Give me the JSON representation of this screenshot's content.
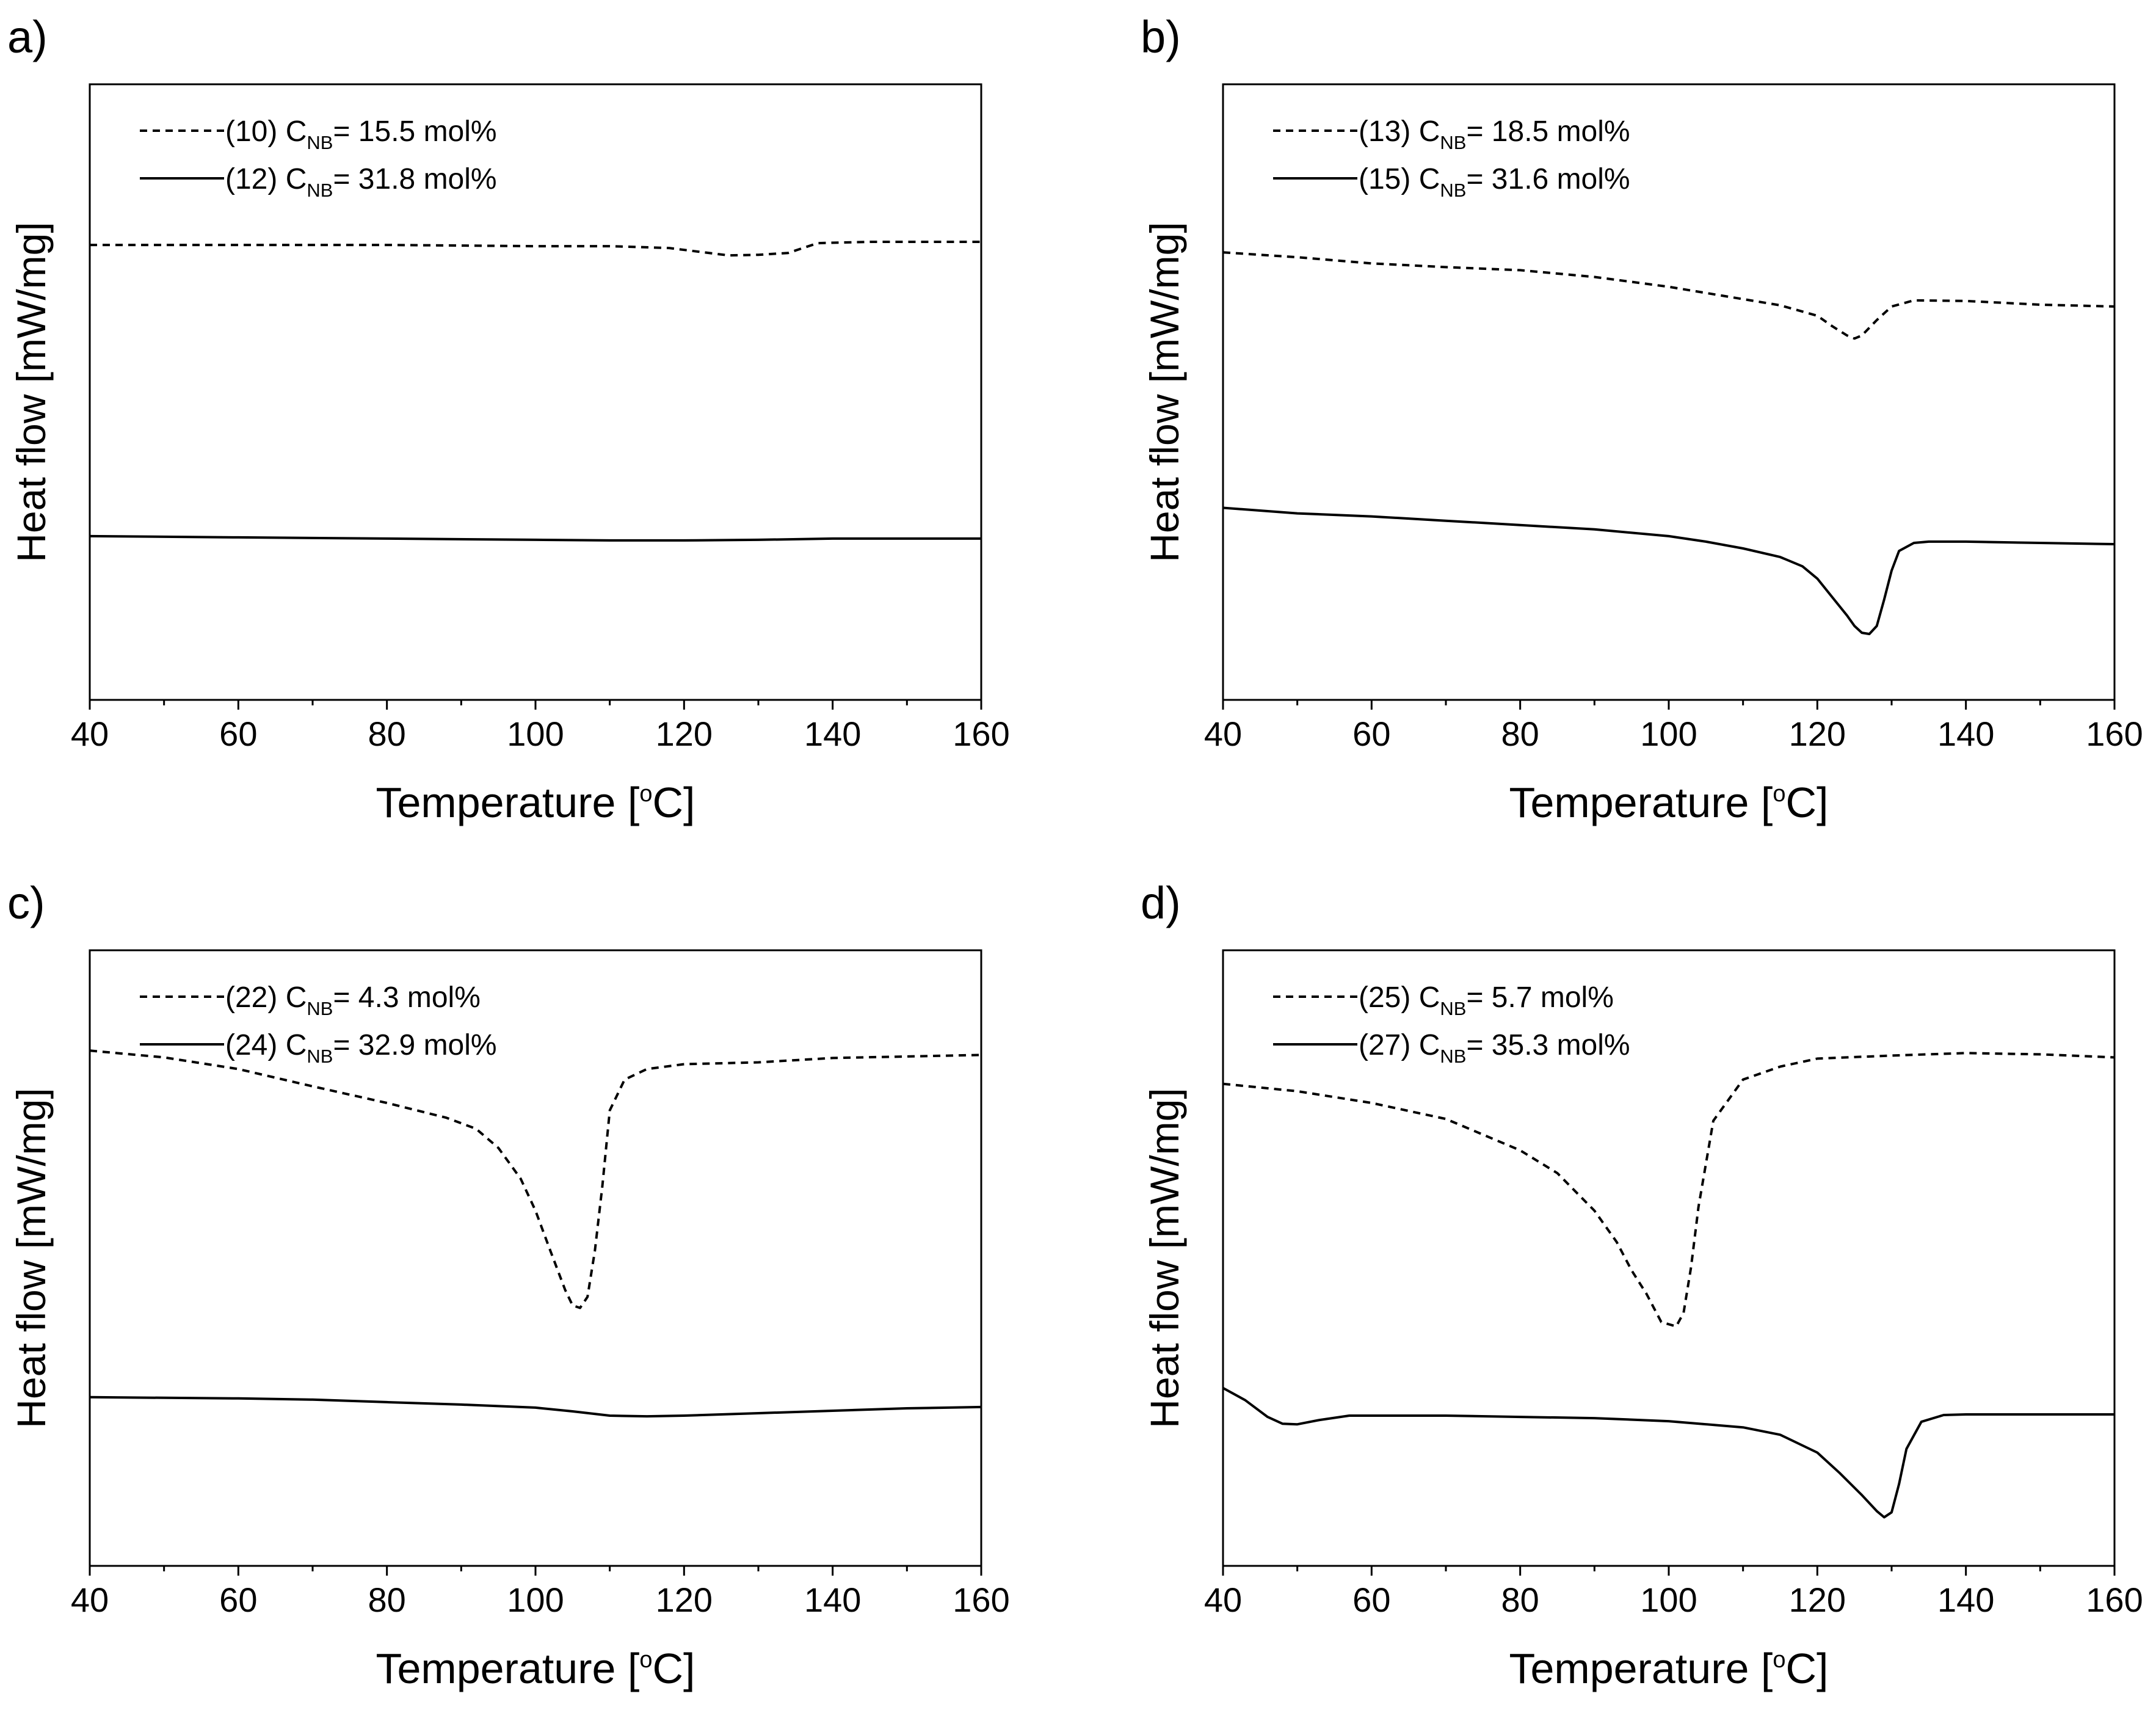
{
  "chart_data": [
    {
      "type": "line",
      "panel_label": "a)",
      "xlabel": {
        "main": "Temperature [",
        "sup": "o",
        "tail": "C]"
      },
      "ylabel": "Heat flow [mW/mg]",
      "xlim": [
        40,
        160
      ],
      "ylim": [
        0,
        100
      ],
      "xticks": [
        40,
        60,
        80,
        100,
        120,
        140,
        160
      ],
      "series": [
        {
          "label_prefix": "(10) C",
          "label_sub": "NB",
          "label_value": "= 15.5 mol%",
          "style": "dashed",
          "x": [
            40,
            60,
            80,
            100,
            110,
            118,
            122,
            126,
            130,
            134,
            138,
            145,
            160
          ],
          "y": [
            73.9,
            73.9,
            73.9,
            73.7,
            73.7,
            73.4,
            72.8,
            72.2,
            72.3,
            72.6,
            74.2,
            74.4,
            74.4
          ]
        },
        {
          "label_prefix": "(12) C",
          "label_sub": "NB",
          "label_value": "= 31.8 mol%",
          "style": "solid",
          "x": [
            40,
            60,
            80,
            100,
            110,
            120,
            130,
            140,
            160
          ],
          "y": [
            26.6,
            26.4,
            26.2,
            26.0,
            25.9,
            25.9,
            26.0,
            26.2,
            26.2
          ]
        }
      ]
    },
    {
      "type": "line",
      "panel_label": "b)",
      "xlabel": {
        "main": "Temperature [",
        "sup": "o",
        "tail": "C]"
      },
      "ylabel": "Heat flow [mW/mg]",
      "xlim": [
        40,
        160
      ],
      "ylim": [
        0,
        100
      ],
      "xticks": [
        40,
        60,
        80,
        100,
        120,
        140,
        160
      ],
      "series": [
        {
          "label_prefix": "(13) C",
          "label_sub": "NB",
          "label_value": "= 18.5 mol%",
          "style": "dashed",
          "x": [
            40,
            50,
            60,
            70,
            80,
            90,
            100,
            110,
            115,
            120,
            122,
            124,
            125,
            126,
            128,
            130,
            133,
            140,
            150,
            160
          ],
          "y": [
            72.7,
            71.9,
            70.9,
            70.3,
            69.8,
            68.7,
            67.1,
            65.1,
            64.1,
            62.4,
            60.7,
            59.2,
            58.7,
            59.2,
            61.7,
            63.9,
            64.9,
            64.8,
            64.2,
            63.9
          ]
        },
        {
          "label_prefix": "(15) C",
          "label_sub": "NB",
          "label_value": "= 31.6 mol%",
          "style": "solid",
          "x": [
            40,
            50,
            60,
            70,
            80,
            90,
            100,
            105,
            110,
            115,
            118,
            120,
            122,
            124,
            125,
            126,
            127,
            128,
            129,
            130,
            131,
            133,
            135,
            140,
            150,
            160
          ],
          "y": [
            31.2,
            30.3,
            29.8,
            29.1,
            28.4,
            27.7,
            26.6,
            25.7,
            24.6,
            23.2,
            21.7,
            19.7,
            16.7,
            13.7,
            12.0,
            10.9,
            10.7,
            12.0,
            16.3,
            21.0,
            24.2,
            25.5,
            25.7,
            25.7,
            25.5,
            25.3
          ]
        }
      ]
    },
    {
      "type": "line",
      "panel_label": "c)",
      "xlabel": {
        "main": "Temperature [",
        "sup": "o",
        "tail": "C]"
      },
      "ylabel": "Heat flow [mW/mg]",
      "xlim": [
        40,
        160
      ],
      "ylim": [
        0,
        100
      ],
      "xticks": [
        40,
        60,
        80,
        100,
        120,
        140,
        160
      ],
      "series": [
        {
          "label_prefix": "(22) C",
          "label_sub": "NB",
          "label_value": "= 4.3 mol%",
          "style": "dashed",
          "x": [
            40,
            50,
            60,
            70,
            80,
            88,
            92,
            95,
            98,
            100,
            102,
            104,
            105,
            106,
            107,
            108,
            109,
            110,
            112,
            115,
            120,
            130,
            140,
            160
          ],
          "y": [
            83.7,
            82.6,
            80.7,
            77.9,
            75.2,
            72.8,
            71.0,
            67.9,
            62.9,
            57.7,
            51.2,
            44.8,
            42.3,
            41.9,
            43.7,
            51.2,
            61.7,
            74.0,
            79.0,
            80.7,
            81.5,
            81.8,
            82.5,
            83.0
          ]
        },
        {
          "label_prefix": "(24) C",
          "label_sub": "NB",
          "label_value": "= 32.9 mol%",
          "style": "solid",
          "x": [
            40,
            60,
            70,
            80,
            90,
            100,
            105,
            110,
            115,
            120,
            130,
            140,
            150,
            160
          ],
          "y": [
            27.4,
            27.2,
            27.0,
            26.6,
            26.2,
            25.7,
            25.1,
            24.4,
            24.3,
            24.4,
            24.8,
            25.2,
            25.6,
            25.8
          ]
        }
      ]
    },
    {
      "type": "line",
      "panel_label": "d)",
      "xlabel": {
        "main": "Temperature [",
        "sup": "o",
        "tail": "C]"
      },
      "ylabel": "Heat flow [mW/mg]",
      "xlim": [
        40,
        160
      ],
      "ylim": [
        0,
        100
      ],
      "xticks": [
        40,
        60,
        80,
        100,
        120,
        140,
        160
      ],
      "series": [
        {
          "label_prefix": "(25) C",
          "label_sub": "NB",
          "label_value": "= 5.7 mol%",
          "style": "dashed",
          "x": [
            40,
            50,
            60,
            70,
            80,
            85,
            90,
            93,
            95,
            97,
            99,
            101,
            102,
            103,
            104,
            106,
            110,
            115,
            120,
            130,
            140,
            150,
            160
          ],
          "y": [
            78.3,
            77.1,
            75.2,
            72.6,
            67.5,
            63.8,
            57.7,
            52.6,
            48.0,
            44.2,
            39.6,
            38.9,
            41.1,
            48.5,
            58.3,
            72.3,
            79.0,
            81.1,
            82.4,
            82.9,
            83.3,
            83.1,
            82.6
          ]
        },
        {
          "label_prefix": "(27) C",
          "label_sub": "NB",
          "label_value": "= 35.3 mol%",
          "style": "solid",
          "x": [
            40,
            43,
            46,
            48,
            50,
            53,
            57,
            60,
            70,
            80,
            90,
            100,
            110,
            115,
            120,
            123,
            126,
            128,
            129,
            130,
            131,
            132,
            134,
            137,
            140,
            160
          ],
          "y": [
            28.9,
            26.9,
            24.2,
            23.1,
            23.0,
            23.7,
            24.4,
            24.4,
            24.4,
            24.2,
            24.0,
            23.5,
            22.5,
            21.3,
            18.4,
            15.1,
            11.5,
            8.9,
            7.9,
            8.7,
            13.3,
            19.0,
            23.4,
            24.5,
            24.6,
            24.6
          ]
        }
      ]
    }
  ]
}
